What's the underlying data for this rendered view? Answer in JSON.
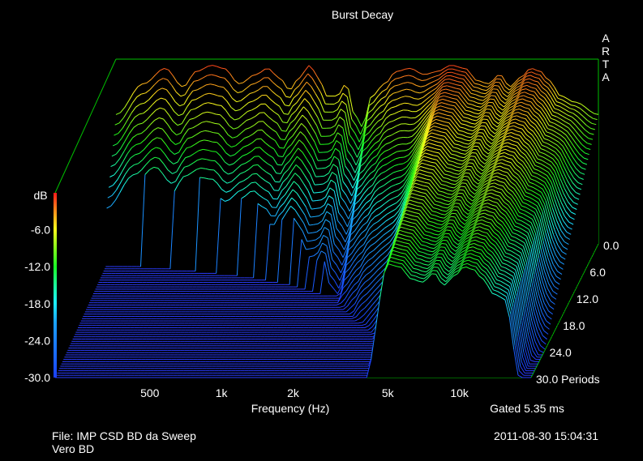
{
  "chart_data": {
    "type": "waterfall",
    "title": "Burst Decay",
    "brand_letters": [
      "A",
      "R",
      "T",
      "A"
    ],
    "x_axis": {
      "label": "Frequency (Hz)",
      "scale": "log",
      "range": [
        200,
        20000
      ],
      "ticks": [
        {
          "value": 500,
          "label": "500"
        },
        {
          "value": 1000,
          "label": "1k"
        },
        {
          "value": 2000,
          "label": "2k"
        },
        {
          "value": 5000,
          "label": "5k"
        },
        {
          "value": 10000,
          "label": "10k"
        }
      ]
    },
    "y_axis": {
      "label": "dB",
      "range": [
        -30,
        0
      ],
      "ticks": [
        {
          "value": -6,
          "label": "-6.0"
        },
        {
          "value": -12,
          "label": "-12.0"
        },
        {
          "value": -18,
          "label": "-18.0"
        },
        {
          "value": -24,
          "label": "-24.0"
        },
        {
          "value": -30,
          "label": "-30.0"
        }
      ]
    },
    "z_axis": {
      "label": "Periods",
      "range": [
        0,
        30
      ],
      "ticks": [
        {
          "value": 0,
          "label": "0.0"
        },
        {
          "value": 6,
          "label": "6.0"
        },
        {
          "value": 12,
          "label": "12.0"
        },
        {
          "value": 18,
          "label": "18.0"
        },
        {
          "value": 24,
          "label": "24.0"
        },
        {
          "value": 30,
          "label": "30.0 Periods"
        }
      ]
    },
    "gated": "Gated 5.35 ms",
    "initial_response_db": [
      {
        "f": 200,
        "db": -9
      },
      {
        "f": 260,
        "db": -4
      },
      {
        "f": 320,
        "db": -1.5
      },
      {
        "f": 380,
        "db": -4.5
      },
      {
        "f": 430,
        "db": -2
      },
      {
        "f": 500,
        "db": -1
      },
      {
        "f": 560,
        "db": -1.5
      },
      {
        "f": 650,
        "db": -4
      },
      {
        "f": 760,
        "db": -2.5
      },
      {
        "f": 850,
        "db": -1.5
      },
      {
        "f": 950,
        "db": -3
      },
      {
        "f": 1050,
        "db": -5
      },
      {
        "f": 1150,
        "db": -3
      },
      {
        "f": 1270,
        "db": -1
      },
      {
        "f": 1380,
        "db": -3
      },
      {
        "f": 1500,
        "db": -6
      },
      {
        "f": 1650,
        "db": -6
      },
      {
        "f": 1800,
        "db": -4
      },
      {
        "f": 1950,
        "db": -9
      },
      {
        "f": 2100,
        "db": -11
      },
      {
        "f": 2300,
        "db": -6
      },
      {
        "f": 2600,
        "db": -4
      },
      {
        "f": 2900,
        "db": -2
      },
      {
        "f": 3300,
        "db": -1.5
      },
      {
        "f": 3800,
        "db": -2.5
      },
      {
        "f": 4300,
        "db": -2
      },
      {
        "f": 4900,
        "db": -1
      },
      {
        "f": 5600,
        "db": -1.5
      },
      {
        "f": 6300,
        "db": -3.5
      },
      {
        "f": 7000,
        "db": -4
      },
      {
        "f": 7800,
        "db": -2.5
      },
      {
        "f": 8600,
        "db": -4.5
      },
      {
        "f": 9500,
        "db": -3
      },
      {
        "f": 10500,
        "db": -1.5
      },
      {
        "f": 11500,
        "db": -2
      },
      {
        "f": 12500,
        "db": -3.5
      },
      {
        "f": 14000,
        "db": -6
      },
      {
        "f": 16000,
        "db": -7
      },
      {
        "f": 20000,
        "db": -9
      }
    ]
  },
  "footer": {
    "file": "File: IMP CSD BD da Sweep",
    "subtitle": "Vero BD",
    "timestamp": "2011-08-30  15:04:31"
  },
  "colors": {
    "background": "#000000",
    "frame": "#00c000",
    "floor_line": "#2a3cff",
    "floor_dark": "#101c80"
  }
}
